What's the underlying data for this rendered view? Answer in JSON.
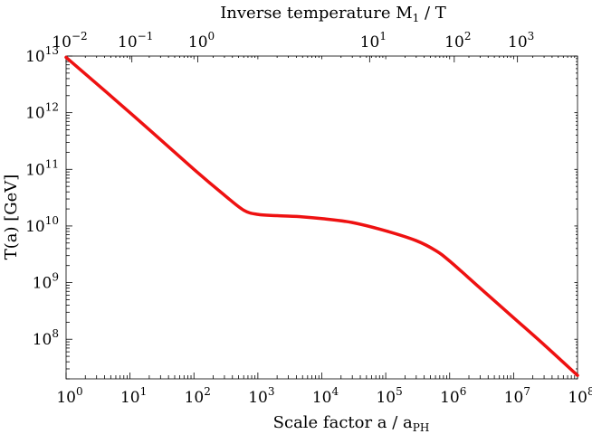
{
  "chart_data": {
    "type": "line",
    "title": "",
    "xlabel": "Scale factor a / a",
    "xlabel_sub": "PH",
    "ylabel": "T(a) [GeV]",
    "top_xlabel": "Inverse temperature M",
    "top_xlabel_sub": "1",
    "top_xlabel_tail": " / T",
    "x_scale": "log",
    "y_scale": "log",
    "xlim": [
      1,
      100000000
    ],
    "ylim": [
      20000000,
      10000000000000
    ],
    "x_ticks": [
      {
        "value": 1,
        "base": "10",
        "exp": "0"
      },
      {
        "value": 10,
        "base": "10",
        "exp": "1"
      },
      {
        "value": 100,
        "base": "10",
        "exp": "2"
      },
      {
        "value": 1000,
        "base": "10",
        "exp": "3"
      },
      {
        "value": 10000,
        "base": "10",
        "exp": "4"
      },
      {
        "value": 100000,
        "base": "10",
        "exp": "5"
      },
      {
        "value": 1000000,
        "base": "10",
        "exp": "6"
      },
      {
        "value": 10000000,
        "base": "10",
        "exp": "7"
      },
      {
        "value": 100000000,
        "base": "10",
        "exp": "8"
      }
    ],
    "y_ticks": [
      {
        "value": 100000000,
        "base": "10",
        "exp": "8"
      },
      {
        "value": 1000000000,
        "base": "10",
        "exp": "9"
      },
      {
        "value": 10000000000,
        "base": "10",
        "exp": "10"
      },
      {
        "value": 100000000000,
        "base": "10",
        "exp": "11"
      },
      {
        "value": 1000000000000,
        "base": "10",
        "exp": "12"
      },
      {
        "value": 10000000000000,
        "base": "10",
        "exp": "13"
      }
    ],
    "top_ticks": [
      {
        "scale_factor": 1,
        "base": "10",
        "exp": "−2"
      },
      {
        "scale_factor": 10.7,
        "base": "10",
        "exp": "−1"
      },
      {
        "scale_factor": 115,
        "base": "10",
        "exp": "0"
      },
      {
        "scale_factor": 56000,
        "base": "10",
        "exp": "1"
      },
      {
        "scale_factor": 1180000,
        "base": "10",
        "exp": "2"
      },
      {
        "scale_factor": 11500000,
        "base": "10",
        "exp": "3"
      }
    ],
    "series": [
      {
        "color": "#ee1111",
        "x": [
          1,
          10,
          100,
          300,
          600,
          1000,
          2000,
          5000,
          10000,
          30000,
          100000,
          300000,
          600000,
          1000000,
          3000000,
          10000000,
          30000000,
          100000000
        ],
        "y": [
          9500000000000,
          1000000000000,
          100000000000,
          35000000000,
          19000000000,
          16000000000,
          15200000000,
          14500000000,
          13500000000,
          11500000000,
          8200000000,
          5500000000,
          3700000000,
          2400000000,
          800000000,
          240000000,
          80000000,
          23000000
        ]
      }
    ]
  }
}
